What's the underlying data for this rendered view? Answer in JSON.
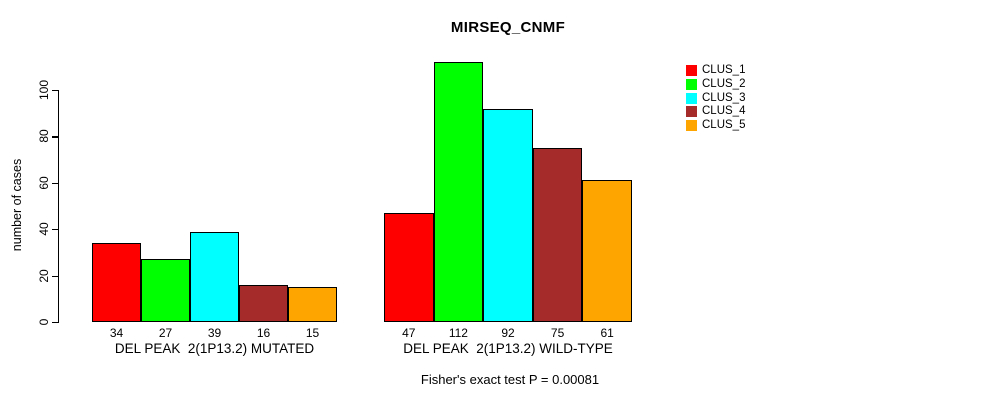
{
  "chart_data": {
    "type": "bar",
    "title": "MIRSEQ_CNMF",
    "ylabel": "number of cases",
    "yticks": [
      0,
      20,
      40,
      60,
      80,
      100
    ],
    "ylim": [
      0,
      116
    ],
    "grid": false,
    "legend_position": "right-outside-top",
    "legend": [
      {
        "label": "CLUS_1",
        "color": "#FF0000"
      },
      {
        "label": "CLUS_2",
        "color": "#00FF00"
      },
      {
        "label": "CLUS_3",
        "color": "#00FFFF"
      },
      {
        "label": "CLUS_4",
        "color": "#A52A2A"
      },
      {
        "label": "CLUS_5",
        "color": "#FFA500"
      }
    ],
    "groups": [
      {
        "label": "DEL PEAK  2(1P13.2) MUTATED",
        "values": [
          34,
          27,
          39,
          16,
          15
        ]
      },
      {
        "label": "DEL PEAK  2(1P13.2) WILD-TYPE",
        "values": [
          47,
          112,
          92,
          75,
          61
        ]
      }
    ],
    "footnote": "Fisher's exact test P = 0.00081"
  }
}
